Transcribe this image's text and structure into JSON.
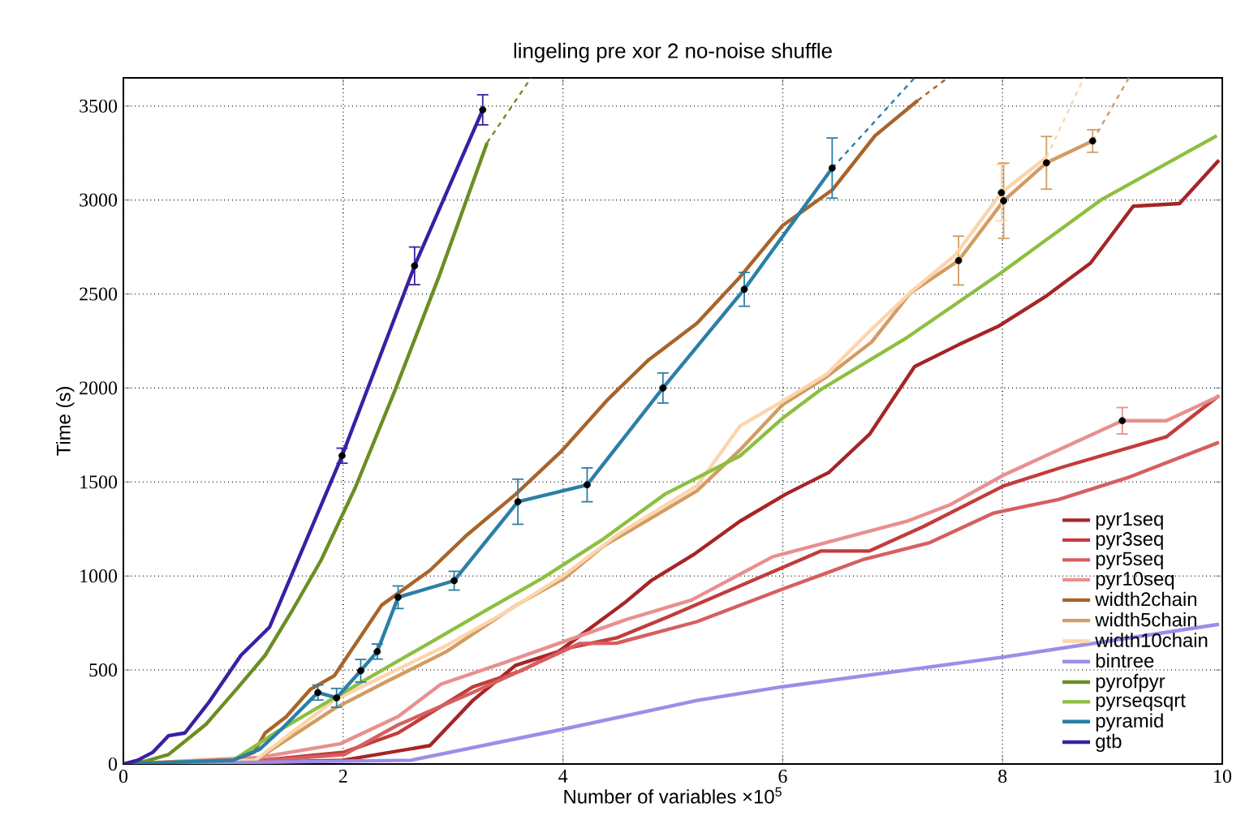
{
  "chart_data": {
    "type": "line",
    "title": "lingeling pre xor 2 no-noise shuffle",
    "xlabel": "Number of variables ×10$^{5}$",
    "ylabel": "Time (s)",
    "xlim": [
      0,
      10
    ],
    "ylim": [
      0,
      3650
    ],
    "xticks": [
      0,
      2,
      4,
      6,
      8,
      10
    ],
    "yticks": [
      0,
      500,
      1000,
      1500,
      2000,
      2500,
      3000,
      3500
    ],
    "grid": true,
    "legend": "bottom right",
    "line_style": "solid",
    "series": [
      {
        "name": "pyr1seq",
        "color": "#a52526",
        "x": [
          0,
          1.0,
          2.0,
          2.79,
          3.18,
          3.57,
          3.96,
          4.56,
          4.8,
          5.2,
          5.61,
          6.03,
          6.42,
          6.79,
          7.2,
          7.6,
          7.97,
          8.4,
          8.8,
          9.19,
          9.61,
          9.97
        ],
        "values": [
          0,
          5,
          20,
          98,
          338,
          525,
          598,
          857,
          974,
          1118,
          1291,
          1436,
          1551,
          1754,
          2114,
          2230,
          2331,
          2490,
          2664,
          2967,
          2981,
          3212
        ]
      },
      {
        "name": "pyr3seq",
        "color": "#c23c3c",
        "x": [
          0,
          1.0,
          2.01,
          2.5,
          3.18,
          3.62,
          4.01,
          4.49,
          4.97,
          6.35,
          6.79,
          7.28,
          8.01,
          8.55,
          9.49,
          9.97
        ],
        "values": [
          0,
          5,
          63,
          165,
          410,
          496,
          612,
          671,
          786,
          1133,
          1133,
          1263,
          1479,
          1580,
          1740,
          1960
        ]
      },
      {
        "name": "pyr5seq",
        "color": "#d65f5f",
        "x": [
          0,
          1.0,
          2.01,
          2.5,
          3.18,
          3.67,
          4.15,
          4.49,
          5.22,
          6.0,
          6.74,
          7.33,
          7.92,
          8.51,
          9.14,
          9.97
        ],
        "values": [
          0,
          5,
          50,
          208,
          381,
          511,
          641,
          643,
          757,
          931,
          1089,
          1176,
          1335,
          1407,
          1523,
          1711
        ]
      },
      {
        "name": "pyr10seq",
        "color": "#e88f8f",
        "x": [
          0,
          1.24,
          1.97,
          2.5,
          2.89,
          3.47,
          3.96,
          4.59,
          5.17,
          5.91,
          7.13,
          7.52,
          8.01,
          9.09,
          9.49,
          9.97
        ],
        "values": [
          0,
          35,
          107,
          252,
          425,
          540,
          641,
          771,
          872,
          1103,
          1291,
          1378,
          1537,
          1826,
          1826,
          1956
        ],
        "errors": [
          null,
          null,
          null,
          null,
          null,
          null,
          null,
          null,
          null,
          null,
          null,
          null,
          null,
          70,
          null,
          null
        ]
      },
      {
        "name": "width2chain",
        "color": "#a8642a",
        "x": [
          0,
          1.0,
          1.19,
          1.29,
          1.48,
          1.7,
          1.92,
          2.35,
          2.79,
          3.13,
          3.57,
          3.98,
          4.41,
          4.78,
          5.22,
          5.61,
          6.0,
          6.45,
          6.84,
          7.23
        ],
        "values": [
          0,
          20,
          63,
          165,
          250,
          396,
          470,
          845,
          1030,
          1220,
          1435,
          1660,
          1940,
          2150,
          2345,
          2590,
          2865,
          3053,
          3342,
          3530
        ]
      },
      {
        "name": "width5chain",
        "color": "#d29c62",
        "x": [
          0,
          1.2,
          1.92,
          2.4,
          2.94,
          3.57,
          4.01,
          4.37,
          4.88,
          5.22,
          5.61,
          6.0,
          6.4,
          6.81,
          7.16,
          7.6,
          8.01,
          8.4,
          8.82
        ],
        "values": [
          0,
          20,
          295,
          440,
          598,
          843,
          987,
          1160,
          1335,
          1453,
          1670,
          1912,
          2060,
          2245,
          2505,
          2678,
          2996,
          3198,
          3314
        ],
        "errors": [
          null,
          null,
          null,
          null,
          null,
          null,
          null,
          null,
          null,
          null,
          null,
          null,
          null,
          null,
          null,
          130,
          200,
          140,
          60
        ]
      },
      {
        "name": "width10chain",
        "color": "#fdd5ac",
        "x": [
          0,
          1.2,
          1.92,
          2.43,
          2.94,
          3.5,
          4.0,
          4.49,
          5.22,
          5.61,
          6.0,
          6.4,
          6.79,
          7.18,
          7.57,
          7.99,
          8.4
        ],
        "values": [
          0,
          20,
          340,
          485,
          630,
          815,
          1000,
          1217,
          1480,
          1797,
          1930,
          2073,
          2302,
          2518,
          2707,
          3039,
          3227
        ],
        "errors": [
          null,
          null,
          null,
          null,
          null,
          null,
          null,
          null,
          null,
          null,
          null,
          null,
          null,
          null,
          null,
          150,
          null
        ]
      },
      {
        "name": "bintree",
        "color": "#9d8de8",
        "x": [
          0,
          2.62,
          3.96,
          5.22,
          6.0,
          8.01,
          9.97
        ],
        "values": [
          0,
          20,
          180,
          338,
          411,
          569,
          743
        ]
      },
      {
        "name": "pyrofpyr",
        "color": "#6b8e23",
        "x": [
          0,
          0.2,
          0.41,
          0.75,
          1.04,
          1.29,
          1.53,
          1.8,
          2.11,
          2.47,
          2.87,
          3.31
        ],
        "values": [
          0,
          15,
          50,
          210,
          405,
          578,
          810,
          1085,
          1470,
          1985,
          2590,
          3305
        ]
      },
      {
        "name": "pyrseqsqrt",
        "color": "#8dbf40",
        "x": [
          0,
          1.0,
          1.38,
          1.92,
          2.43,
          2.82,
          3.33,
          3.81,
          4.35,
          4.93,
          5.61,
          6.0,
          6.35,
          7.13,
          7.97,
          8.9,
          9.95
        ],
        "values": [
          0,
          20,
          165,
          352,
          525,
          655,
          828,
          987,
          1190,
          1436,
          1638,
          1840,
          1993,
          2268,
          2606,
          3002,
          3342
        ]
      },
      {
        "name": "pyramid",
        "color": "#2a7fa6",
        "x": [
          0,
          1.0,
          1.24,
          1.43,
          1.6,
          1.77,
          1.94,
          2.16,
          2.31,
          2.5,
          3.01,
          3.59,
          4.22,
          4.91,
          5.65,
          6.45
        ],
        "values": [
          0,
          20,
          78,
          180,
          280,
          380,
          352,
          496,
          598,
          887,
          975,
          1395,
          1485,
          2000,
          2525,
          3170
        ],
        "errors": [
          null,
          null,
          null,
          null,
          null,
          40,
          50,
          60,
          40,
          60,
          50,
          120,
          90,
          80,
          90,
          160
        ]
      },
      {
        "name": "gtb",
        "color": "#3a1fa3",
        "x": [
          0,
          0.13,
          0.27,
          0.41,
          0.56,
          0.78,
          1.07,
          1.33,
          1.99,
          2.65,
          3.27
        ],
        "values": [
          0,
          20,
          63,
          150,
          165,
          330,
          578,
          728,
          1640,
          2650,
          3480
        ],
        "errors": [
          null,
          null,
          null,
          null,
          null,
          null,
          null,
          null,
          40,
          100,
          80
        ]
      },
      {
        "type": "line",
        "line_style": "dashed",
        "color": "#a8642a",
        "x": [
          7.23,
          7.5
        ],
        "values": [
          3530,
          3650
        ]
      },
      {
        "type": "line",
        "line_style": "dashed",
        "color": "#d29c62",
        "x": [
          8.82,
          9.15
        ],
        "values": [
          3314,
          3650
        ]
      },
      {
        "type": "line",
        "line_style": "dashed",
        "color": "#fdd5ac",
        "x": [
          8.4,
          8.74
        ],
        "values": [
          3227,
          3650
        ]
      },
      {
        "type": "line",
        "line_style": "dashed",
        "color": "#6b8e23",
        "x": [
          3.31,
          3.71
        ],
        "values": [
          3305,
          3650
        ]
      },
      {
        "type": "line",
        "line_style": "dashed",
        "color": "#2a7fa6",
        "x": [
          6.45,
          7.2
        ],
        "values": [
          3170,
          3650
        ]
      }
    ]
  }
}
